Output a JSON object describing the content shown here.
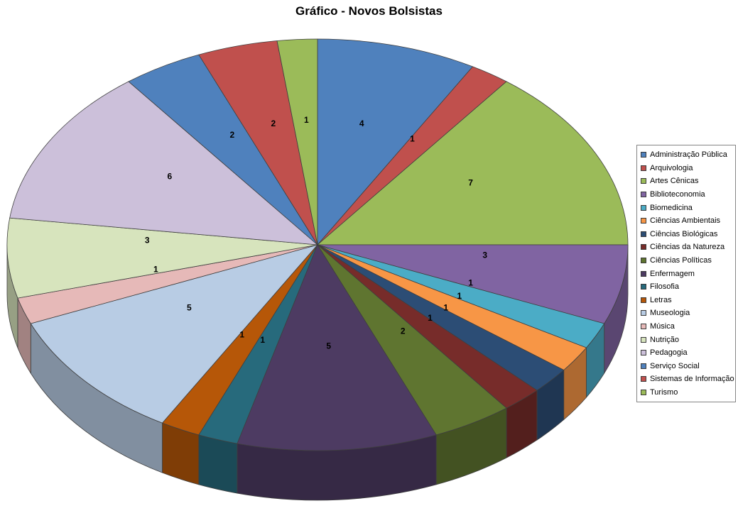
{
  "chart_data": {
    "type": "pie",
    "style": "3d-pie",
    "title": "Gráfico - Novos Bolsistas",
    "categories": [
      "Administração Pública",
      "Arquivologia",
      "Artes Cênicas",
      "Biblioteconomia",
      "Biomedicina",
      "Ciências Ambientais",
      "Ciências Biológicas",
      "Ciências da Natureza",
      "Ciências Políticas",
      "Enfermagem",
      "Filosofia",
      "Letras",
      "Museologia",
      "Música",
      "Nutrição",
      "Pedagogia",
      "Serviço Social",
      "Sistemas de Informação",
      "Turismo"
    ],
    "values": [
      4,
      1,
      7,
      3,
      1,
      1,
      1,
      1,
      2,
      5,
      1,
      1,
      5,
      1,
      3,
      6,
      2,
      2,
      1
    ],
    "colors": [
      "#4F81BD",
      "#C0504D",
      "#9BBB59",
      "#8064A2",
      "#4BACC6",
      "#F79646",
      "#2C4D75",
      "#772C2A",
      "#5F7530",
      "#4D3B62",
      "#276A7C",
      "#B65708",
      "#B8CCE4",
      "#E6B9B8",
      "#D7E4BD",
      "#CCC0DA",
      "#4F81BD",
      "#C0504D",
      "#9BBB59"
    ],
    "total": 48,
    "data_labels": "value",
    "legend_position": "right",
    "start_angle_deg": 0,
    "direction": "clockwise",
    "background_color": "#FFFFFF"
  }
}
